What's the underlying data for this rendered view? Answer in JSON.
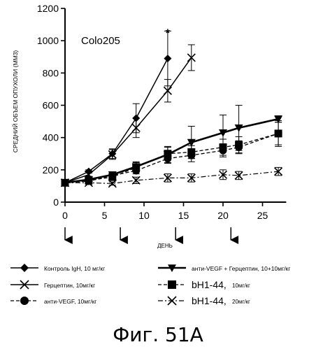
{
  "chart_data": {
    "type": "line",
    "title": "Colo205",
    "xlabel": "ДЕНЬ",
    "ylabel": "СРЕДНИЙ ОБЪЕМ ОПУХОЛИ (ММ3)",
    "xlim": [
      0,
      28
    ],
    "ylim": [
      0,
      1200
    ],
    "xticks": [
      0,
      5,
      10,
      15,
      20,
      25
    ],
    "yticks": [
      0,
      200,
      400,
      600,
      800,
      1000,
      1200
    ],
    "grid": false,
    "legend_position": "bottom",
    "dosing_days": [
      0,
      7,
      14,
      21
    ],
    "annotations": [
      {
        "text": "*",
        "x": 13,
        "y": 1060
      }
    ],
    "series": [
      {
        "name": "Контроль IgH, 10 мг/кг",
        "marker": "diamond",
        "line": "solid",
        "x": [
          0,
          3,
          6,
          9,
          13
        ],
        "y": [
          120,
          190,
          300,
          520,
          890
        ],
        "err": [
          0,
          10,
          30,
          90,
          170
        ]
      },
      {
        "name": "Герцептин, 10мг/кг",
        "marker": "x",
        "line": "solid",
        "x": [
          0,
          3,
          6,
          9,
          13,
          16
        ],
        "y": [
          120,
          170,
          295,
          460,
          690,
          895
        ],
        "err": [
          0,
          10,
          30,
          60,
          70,
          80
        ]
      },
      {
        "name": "анти-VEGF, 10мг/кг",
        "marker": "circle",
        "line": "dashed",
        "x": [
          0,
          3,
          6,
          9,
          13,
          16,
          20,
          22,
          27
        ],
        "y": [
          120,
          130,
          165,
          195,
          270,
          290,
          320,
          340,
          425
        ],
        "err": [
          0,
          10,
          15,
          20,
          30,
          40,
          40,
          40,
          70
        ]
      },
      {
        "name": "анти-VEGF + Герцептин, 10+10мг/кг",
        "marker": "triangle-down",
        "line": "thick",
        "x": [
          0,
          3,
          6,
          9,
          13,
          16,
          20,
          22,
          27
        ],
        "y": [
          120,
          140,
          170,
          220,
          295,
          370,
          430,
          460,
          515
        ],
        "err": [
          0,
          10,
          15,
          30,
          50,
          100,
          110,
          140,
          20
        ]
      },
      {
        "name": "bH1-44, 10мг/кг",
        "name_main": "bH1-44,",
        "name_unit": "10мг/кг",
        "marker": "square",
        "line": "dashed",
        "x": [
          0,
          3,
          6,
          9,
          13,
          16,
          20,
          22,
          27
        ],
        "y": [
          120,
          135,
          155,
          215,
          300,
          310,
          340,
          355,
          425
        ],
        "err": [
          0,
          10,
          15,
          30,
          40,
          40,
          50,
          50,
          80
        ]
      },
      {
        "name": "bH1-44, 20мг/кг",
        "name_main": "bH1-44,",
        "name_unit": "20мг/кг",
        "marker": "x",
        "line": "dashdot",
        "x": [
          0,
          3,
          6,
          9,
          13,
          16,
          20,
          22,
          27
        ],
        "y": [
          120,
          120,
          115,
          135,
          150,
          150,
          170,
          165,
          190
        ],
        "err": [
          0,
          10,
          10,
          20,
          25,
          25,
          30,
          25,
          25
        ]
      }
    ]
  },
  "figure_caption": "Фиг. 51А"
}
